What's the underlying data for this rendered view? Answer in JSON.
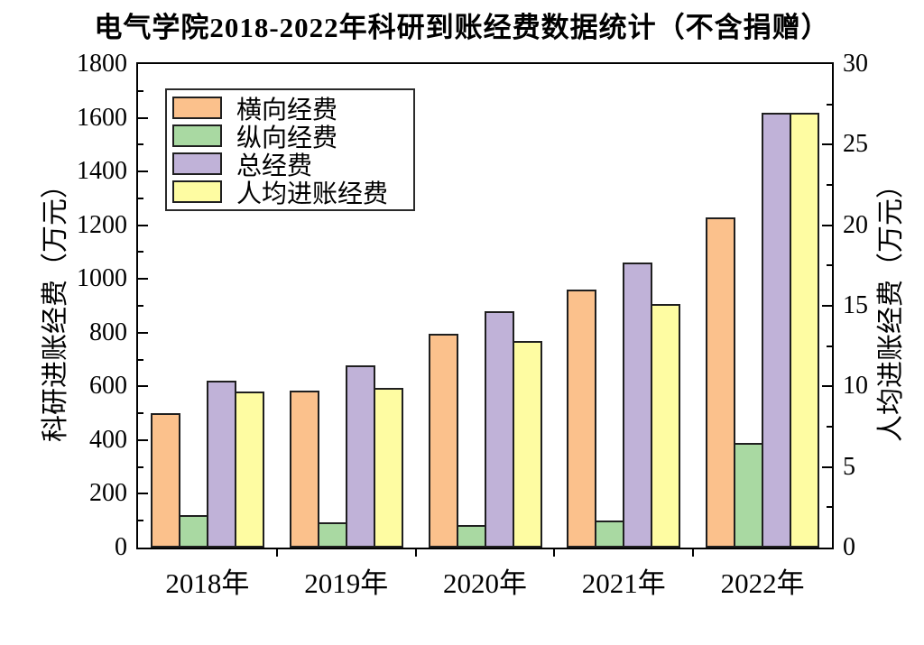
{
  "chart_data": {
    "type": "bar",
    "title": "电气学院2018-2022年科研到账经费数据统计（不含捐赠）",
    "ylabel_left": "科研进账经费（万元）",
    "ylabel_right": "人均进账经费（万元）",
    "categories": [
      "2018年",
      "2019年",
      "2020年",
      "2021年",
      "2022年"
    ],
    "series": [
      {
        "key": "horizontal-funding",
        "name": "横向经费",
        "axis": "left",
        "color": "#FBC18C",
        "values": [
          500,
          585,
          795,
          960,
          1230
        ]
      },
      {
        "key": "vertical-funding",
        "name": "纵向经费",
        "axis": "left",
        "color": "#A9D9A2",
        "values": [
          120,
          95,
          85,
          100,
          390
        ]
      },
      {
        "key": "total-funding",
        "name": "总经费",
        "axis": "left",
        "color": "#C0B2D8",
        "values": [
          620,
          680,
          880,
          1060,
          1620
        ]
      },
      {
        "key": "per-capita-funding",
        "name": "人均进账经费",
        "axis": "right",
        "color": "#FEFCA2",
        "values": [
          9.7,
          9.9,
          12.8,
          15.1,
          27
        ]
      }
    ],
    "ylim_left": [
      0,
      1800
    ],
    "ylim_right": [
      0,
      30
    ],
    "yticks_left": [
      0,
      200,
      400,
      600,
      800,
      1000,
      1200,
      1400,
      1600,
      1800
    ],
    "yticks_right": [
      0,
      5,
      10,
      15,
      20,
      25,
      30
    ],
    "minor_step_left": 100,
    "minor_step_right": 2.5,
    "grid": "off",
    "legend_position": "upper-left",
    "bar_edge_color": "#1f1f1f",
    "frame_color": "#000000"
  }
}
